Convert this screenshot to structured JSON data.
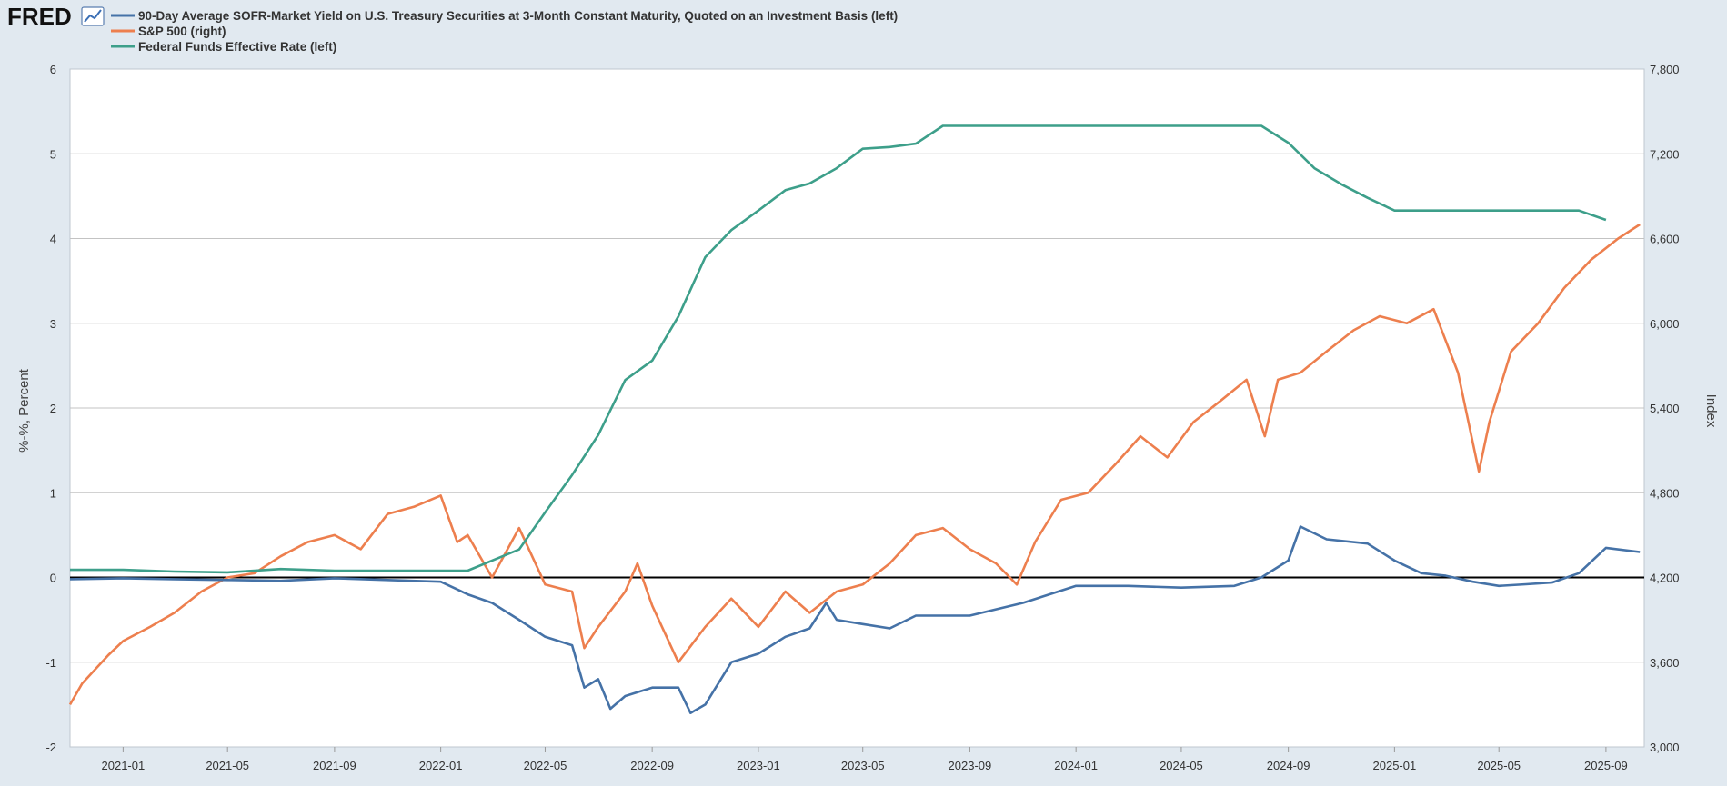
{
  "header": {
    "logo_text": "FRED",
    "logo_icon": "line-chart-icon"
  },
  "chart_data": {
    "type": "line",
    "legend_position": "top-left",
    "grid": true,
    "x_range": [
      "2020-11-01",
      "2025-10-15"
    ],
    "x_tick_labels": [
      "2021-01",
      "2021-05",
      "2021-09",
      "2022-01",
      "2022-05",
      "2022-09",
      "2023-01",
      "2023-05",
      "2023-09",
      "2024-01",
      "2024-05",
      "2024-09",
      "2025-01",
      "2025-05",
      "2025-09"
    ],
    "left_axis": {
      "title": "%-%, Percent",
      "range": [
        -2,
        6
      ],
      "ticks": [
        -2,
        -1,
        0,
        1,
        2,
        3,
        4,
        5,
        6
      ],
      "tick_labels": [
        "-2",
        "-1",
        "0",
        "1",
        "2",
        "3",
        "4",
        "5",
        "6"
      ]
    },
    "right_axis": {
      "title": "Index",
      "range": [
        3000,
        7800
      ],
      "ticks": [
        3000,
        3600,
        4200,
        4800,
        5400,
        6000,
        6600,
        7200,
        7800
      ],
      "tick_labels": [
        "3,000",
        "3,600",
        "4,200",
        "4,800",
        "5,400",
        "6,000",
        "6,600",
        "7,200",
        "7,800"
      ]
    },
    "zero_line": 0,
    "series": [
      {
        "name": "90-Day Average SOFR-Market Yield on U.S. Treasury Securities at 3-Month Constant Maturity, Quoted on an Investment Basis (left)",
        "axis": "left",
        "color": "#4572a7",
        "points": [
          [
            "2020-11-01",
            -0.02
          ],
          [
            "2021-01-01",
            -0.01
          ],
          [
            "2021-03-01",
            -0.02
          ],
          [
            "2021-05-01",
            -0.03
          ],
          [
            "2021-07-01",
            -0.04
          ],
          [
            "2021-09-01",
            -0.01
          ],
          [
            "2021-11-01",
            -0.03
          ],
          [
            "2022-01-01",
            -0.05
          ],
          [
            "2022-02-01",
            -0.2
          ],
          [
            "2022-03-01",
            -0.3
          ],
          [
            "2022-04-01",
            -0.5
          ],
          [
            "2022-05-01",
            -0.7
          ],
          [
            "2022-06-01",
            -0.8
          ],
          [
            "2022-06-15",
            -1.3
          ],
          [
            "2022-07-01",
            -1.2
          ],
          [
            "2022-07-15",
            -1.55
          ],
          [
            "2022-08-01",
            -1.4
          ],
          [
            "2022-09-01",
            -1.3
          ],
          [
            "2022-10-01",
            -1.3
          ],
          [
            "2022-10-15",
            -1.6
          ],
          [
            "2022-11-01",
            -1.5
          ],
          [
            "2022-12-01",
            -1.0
          ],
          [
            "2023-01-01",
            -0.9
          ],
          [
            "2023-02-01",
            -0.7
          ],
          [
            "2023-03-01",
            -0.6
          ],
          [
            "2023-03-20",
            -0.3
          ],
          [
            "2023-04-01",
            -0.5
          ],
          [
            "2023-05-01",
            -0.55
          ],
          [
            "2023-06-01",
            -0.6
          ],
          [
            "2023-07-01",
            -0.45
          ],
          [
            "2023-09-01",
            -0.45
          ],
          [
            "2023-11-01",
            -0.3
          ],
          [
            "2024-01-01",
            -0.1
          ],
          [
            "2024-03-01",
            -0.1
          ],
          [
            "2024-05-01",
            -0.12
          ],
          [
            "2024-07-01",
            -0.1
          ],
          [
            "2024-08-01",
            0.0
          ],
          [
            "2024-09-01",
            0.2
          ],
          [
            "2024-09-15",
            0.6
          ],
          [
            "2024-10-15",
            0.45
          ],
          [
            "2024-12-01",
            0.4
          ],
          [
            "2025-01-01",
            0.2
          ],
          [
            "2025-02-01",
            0.05
          ],
          [
            "2025-03-01",
            0.02
          ],
          [
            "2025-04-01",
            -0.05
          ],
          [
            "2025-05-01",
            -0.1
          ],
          [
            "2025-06-01",
            -0.08
          ],
          [
            "2025-07-01",
            -0.06
          ],
          [
            "2025-08-01",
            0.05
          ],
          [
            "2025-09-01",
            0.35
          ],
          [
            "2025-10-10",
            0.3
          ]
        ]
      },
      {
        "name": "S&P 500 (right)",
        "axis": "right",
        "color": "#ed7f4e",
        "points": [
          [
            "2020-11-01",
            3300
          ],
          [
            "2020-11-15",
            3450
          ],
          [
            "2020-12-15",
            3650
          ],
          [
            "2021-01-01",
            3750
          ],
          [
            "2021-02-01",
            3850
          ],
          [
            "2021-03-01",
            3950
          ],
          [
            "2021-04-01",
            4100
          ],
          [
            "2021-05-01",
            4200
          ],
          [
            "2021-06-01",
            4230
          ],
          [
            "2021-07-01",
            4350
          ],
          [
            "2021-08-01",
            4450
          ],
          [
            "2021-09-01",
            4500
          ],
          [
            "2021-10-01",
            4400
          ],
          [
            "2021-11-01",
            4650
          ],
          [
            "2021-12-01",
            4700
          ],
          [
            "2022-01-01",
            4780
          ],
          [
            "2022-01-20",
            4450
          ],
          [
            "2022-02-01",
            4500
          ],
          [
            "2022-03-01",
            4200
          ],
          [
            "2022-04-01",
            4550
          ],
          [
            "2022-05-01",
            4150
          ],
          [
            "2022-06-01",
            4100
          ],
          [
            "2022-06-15",
            3700
          ],
          [
            "2022-07-01",
            3850
          ],
          [
            "2022-08-01",
            4100
          ],
          [
            "2022-08-15",
            4300
          ],
          [
            "2022-09-01",
            4000
          ],
          [
            "2022-10-01",
            3600
          ],
          [
            "2022-11-01",
            3850
          ],
          [
            "2022-12-01",
            4050
          ],
          [
            "2023-01-01",
            3850
          ],
          [
            "2023-02-01",
            4100
          ],
          [
            "2023-03-01",
            3950
          ],
          [
            "2023-04-01",
            4100
          ],
          [
            "2023-05-01",
            4150
          ],
          [
            "2023-06-01",
            4300
          ],
          [
            "2023-07-01",
            4500
          ],
          [
            "2023-08-01",
            4550
          ],
          [
            "2023-09-01",
            4400
          ],
          [
            "2023-10-01",
            4300
          ],
          [
            "2023-10-25",
            4150
          ],
          [
            "2023-11-15",
            4450
          ],
          [
            "2023-12-15",
            4750
          ],
          [
            "2024-01-15",
            4800
          ],
          [
            "2024-02-15",
            5000
          ],
          [
            "2024-03-15",
            5200
          ],
          [
            "2024-04-15",
            5050
          ],
          [
            "2024-05-15",
            5300
          ],
          [
            "2024-06-15",
            5450
          ],
          [
            "2024-07-15",
            5600
          ],
          [
            "2024-08-05",
            5200
          ],
          [
            "2024-08-20",
            5600
          ],
          [
            "2024-09-15",
            5650
          ],
          [
            "2024-10-15",
            5800
          ],
          [
            "2024-11-15",
            5950
          ],
          [
            "2024-12-15",
            6050
          ],
          [
            "2025-01-15",
            6000
          ],
          [
            "2025-02-15",
            6100
          ],
          [
            "2025-03-15",
            5650
          ],
          [
            "2025-04-08",
            4950
          ],
          [
            "2025-04-20",
            5300
          ],
          [
            "2025-05-15",
            5800
          ],
          [
            "2025-06-15",
            6000
          ],
          [
            "2025-07-15",
            6250
          ],
          [
            "2025-08-15",
            6450
          ],
          [
            "2025-09-15",
            6600
          ],
          [
            "2025-10-10",
            6700
          ]
        ]
      },
      {
        "name": "Federal Funds Effective Rate (left)",
        "axis": "left",
        "color": "#3d9f8a",
        "points": [
          [
            "2020-11-01",
            0.09
          ],
          [
            "2021-01-01",
            0.09
          ],
          [
            "2021-03-01",
            0.07
          ],
          [
            "2021-05-01",
            0.06
          ],
          [
            "2021-07-01",
            0.1
          ],
          [
            "2021-09-01",
            0.08
          ],
          [
            "2021-11-01",
            0.08
          ],
          [
            "2022-01-01",
            0.08
          ],
          [
            "2022-02-01",
            0.08
          ],
          [
            "2022-03-01",
            0.2
          ],
          [
            "2022-04-01",
            0.33
          ],
          [
            "2022-05-01",
            0.77
          ],
          [
            "2022-06-01",
            1.21
          ],
          [
            "2022-07-01",
            1.68
          ],
          [
            "2022-08-01",
            2.33
          ],
          [
            "2022-09-01",
            2.56
          ],
          [
            "2022-10-01",
            3.08
          ],
          [
            "2022-11-01",
            3.78
          ],
          [
            "2022-12-01",
            4.1
          ],
          [
            "2023-01-01",
            4.33
          ],
          [
            "2023-02-01",
            4.57
          ],
          [
            "2023-03-01",
            4.65
          ],
          [
            "2023-04-01",
            4.83
          ],
          [
            "2023-05-01",
            5.06
          ],
          [
            "2023-06-01",
            5.08
          ],
          [
            "2023-07-01",
            5.12
          ],
          [
            "2023-08-01",
            5.33
          ],
          [
            "2024-08-01",
            5.33
          ],
          [
            "2024-09-01",
            5.13
          ],
          [
            "2024-10-01",
            4.83
          ],
          [
            "2024-11-01",
            4.64
          ],
          [
            "2024-12-01",
            4.48
          ],
          [
            "2025-01-01",
            4.33
          ],
          [
            "2025-08-01",
            4.33
          ],
          [
            "2025-09-01",
            4.22
          ]
        ]
      }
    ]
  }
}
